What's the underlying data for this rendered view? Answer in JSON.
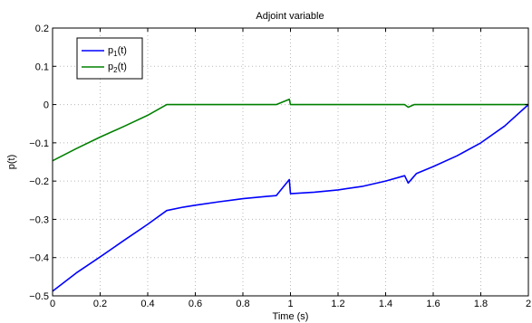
{
  "chart_data": {
    "type": "line",
    "title": "Adjoint variable",
    "xlabel": "Time (s)",
    "ylabel": "p(t)",
    "xlim": [
      0,
      2
    ],
    "ylim": [
      -0.5,
      0.2
    ],
    "grid": true,
    "legend_position": "top-left",
    "x_ticks": [
      "0",
      "0.2",
      "0.4",
      "0.6",
      "0.8",
      "1",
      "1.2",
      "1.4",
      "1.6",
      "1.8",
      "2"
    ],
    "y_ticks": [
      "−0.5",
      "−0.4",
      "−0.3",
      "−0.2",
      "−0.1",
      "0",
      "0.1",
      "0.2"
    ],
    "series": [
      {
        "name": "p1(t)",
        "legend_base": "p",
        "legend_sub": "1",
        "legend_suffix": "(t)",
        "color": "#0000ff",
        "points": [
          [
            0,
            -0.488
          ],
          [
            0.1,
            -0.44
          ],
          [
            0.2,
            -0.398
          ],
          [
            0.3,
            -0.355
          ],
          [
            0.4,
            -0.313
          ],
          [
            0.48,
            -0.277
          ],
          [
            0.55,
            -0.268
          ],
          [
            0.6,
            -0.263
          ],
          [
            0.7,
            -0.254
          ],
          [
            0.8,
            -0.246
          ],
          [
            0.9,
            -0.24
          ],
          [
            0.94,
            -0.238
          ],
          [
            0.995,
            -0.196
          ],
          [
            1.0,
            -0.233
          ],
          [
            1.1,
            -0.229
          ],
          [
            1.2,
            -0.223
          ],
          [
            1.3,
            -0.214
          ],
          [
            1.4,
            -0.2
          ],
          [
            1.48,
            -0.186
          ],
          [
            1.495,
            -0.205
          ],
          [
            1.53,
            -0.18
          ],
          [
            1.6,
            -0.162
          ],
          [
            1.7,
            -0.134
          ],
          [
            1.8,
            -0.1
          ],
          [
            1.9,
            -0.056
          ],
          [
            2.0,
            0.0
          ]
        ]
      },
      {
        "name": "p2(t)",
        "legend_base": "p",
        "legend_sub": "2",
        "legend_suffix": "(t)",
        "color": "#008000",
        "points": [
          [
            0,
            -0.147
          ],
          [
            0.1,
            -0.115
          ],
          [
            0.2,
            -0.085
          ],
          [
            0.3,
            -0.057
          ],
          [
            0.4,
            -0.028
          ],
          [
            0.48,
            0.0
          ],
          [
            0.94,
            0.0
          ],
          [
            0.995,
            0.014
          ],
          [
            1.0,
            0.0
          ],
          [
            1.48,
            0.0
          ],
          [
            1.495,
            -0.007
          ],
          [
            1.52,
            0.0
          ],
          [
            2.0,
            0.0
          ]
        ]
      }
    ]
  }
}
